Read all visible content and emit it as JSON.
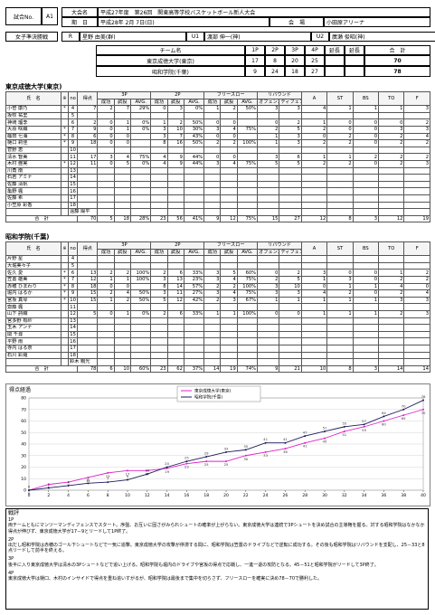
{
  "header": {
    "match_no_label": "試合No.",
    "match_no": "A1",
    "tournament_label": "大会名",
    "tournament": "平成27年度　第26回　関東高等学校バスケットボール新人大会",
    "date_label": "期　日",
    "date": "平成28年 2月 7日(日)",
    "venue_label": "会　場",
    "venue": "小田原アリーナ",
    "round": "女子準決勝戦",
    "officials": [
      {
        "role": "R",
        "name": "星野 由美(群)"
      },
      {
        "role": "U1",
        "name": "渡部 伸一(神)"
      },
      {
        "role": "U2",
        "name": "廣瀬 俊昭(神)"
      }
    ]
  },
  "scoreboard": {
    "headers": [
      "チーム名",
      "1P",
      "2P",
      "3P",
      "4P",
      "延長",
      "延長",
      "合　計"
    ],
    "rows": [
      {
        "team": "東京成徳大学(東京)",
        "periods": [
          17,
          8,
          20,
          25
        ],
        "total": 70
      },
      {
        "team": "昭和学院(千葉)",
        "periods": [
          9,
          24,
          18,
          27
        ],
        "total": 78
      }
    ]
  },
  "box_headers": {
    "top": [
      "氏　名",
      "※",
      "no",
      "得点",
      "3P",
      "2P",
      "フリースロー",
      "リバウンド",
      "A",
      "ST",
      "BS",
      "TO",
      "F"
    ],
    "sub": [
      "成功",
      "試投",
      "AVG.",
      "成功",
      "試投",
      "AVG.",
      "成功",
      "試投",
      "AVG.",
      "オフェンス",
      "ディフェンス"
    ]
  },
  "teams": [
    {
      "name": "東京成徳大学(東京)",
      "players": [
        {
          "name": "小笹 康乃",
          "starter": "*",
          "no": 4,
          "stats": [
            7,
            2,
            7,
            "29%",
            0,
            3,
            "0%",
            1,
            2,
            "50%",
            3,
            3,
            4,
            1,
            1,
            1,
            3
          ]
        },
        {
          "name": "坂牧 祐里",
          "no": 5,
          "stats": []
        },
        {
          "name": "神崎 瑠李",
          "no": 6,
          "stats": [
            2,
            0,
            1,
            "0%",
            1,
            2,
            "50%",
            0,
            0,
            null,
            0,
            2,
            1,
            0,
            0,
            0,
            2
          ]
        },
        {
          "name": "大原 咲織",
          "starter": "*",
          "no": 7,
          "stats": [
            9,
            0,
            1,
            "0%",
            3,
            10,
            "30%",
            3,
            4,
            "75%",
            2,
            5,
            2,
            0,
            0,
            3,
            3
          ]
        },
        {
          "name": "篠田 七海",
          "starter": "*",
          "no": 8,
          "stats": [
            6,
            0,
            0,
            null,
            3,
            7,
            "43%",
            0,
            0,
            null,
            1,
            3,
            0,
            2,
            0,
            2,
            4
          ]
        },
        {
          "name": "樋口 莉佳",
          "starter": "*",
          "no": 9,
          "stats": [
            18,
            0,
            0,
            null,
            8,
            16,
            "50%",
            2,
            2,
            "100%",
            1,
            3,
            2,
            2,
            0,
            2,
            2
          ]
        },
        {
          "name": "菅野 恵",
          "no": 10,
          "stats": []
        },
        {
          "name": "清水 智美",
          "no": 11,
          "stats": [
            17,
            3,
            4,
            "75%",
            4,
            9,
            "44%",
            0,
            0,
            null,
            3,
            6,
            1,
            1,
            2,
            2,
            2
          ]
        },
        {
          "name": "木村 亜実",
          "starter": "*",
          "no": 12,
          "stats": [
            11,
            0,
            5,
            "0%",
            4,
            9,
            "44%",
            3,
            4,
            "75%",
            5,
            5,
            2,
            2,
            0,
            2,
            3
          ]
        },
        {
          "name": "川角 南",
          "no": 13,
          "stats": []
        },
        {
          "name": "石若 アミナ",
          "no": 14,
          "stats": []
        },
        {
          "name": "佐藤 清帆",
          "no": 15,
          "stats": []
        },
        {
          "name": "亀野 楓",
          "no": 16,
          "stats": []
        },
        {
          "name": "佐藤 希",
          "no": 17,
          "stats": []
        },
        {
          "name": "小笠原 彩香",
          "no": 18,
          "stats": []
        }
      ],
      "coach": "遠藤 陽平",
      "total_label": "合　計",
      "totals": [
        70,
        5,
        18,
        "28%",
        23,
        56,
        "41%",
        9,
        12,
        "75%",
        15,
        27,
        12,
        8,
        3,
        12,
        19
      ]
    },
    {
      "name": "昭和学院(千葉)",
      "players": [
        {
          "name": "片野 星",
          "no": 4,
          "stats": []
        },
        {
          "name": "大堀美々子",
          "no": 5,
          "stats": []
        },
        {
          "name": "佐久 愛",
          "starter": "*",
          "no": 6,
          "stats": [
            13,
            2,
            2,
            "100%",
            2,
            6,
            "33%",
            3,
            5,
            "60%",
            0,
            2,
            3,
            0,
            0,
            1,
            2
          ]
        },
        {
          "name": "笠置 雄美",
          "starter": "*",
          "no": 7,
          "stats": [
            12,
            1,
            1,
            "100%",
            3,
            13,
            "23%",
            3,
            4,
            "75%",
            2,
            5,
            1,
            3,
            0,
            2,
            2
          ]
        },
        {
          "name": "赤穂 ひまわり",
          "starter": "*",
          "no": 8,
          "stats": [
            18,
            0,
            0,
            null,
            8,
            14,
            "57%",
            2,
            2,
            "100%",
            3,
            10,
            0,
            1,
            1,
            4,
            0
          ]
        },
        {
          "name": "堀内 はるか",
          "starter": "*",
          "no": 9,
          "stats": [
            15,
            2,
            4,
            "50%",
            3,
            11,
            "27%",
            3,
            4,
            "75%",
            3,
            3,
            4,
            2,
            0,
            2,
            4
          ]
        },
        {
          "name": "宮坂 真琴",
          "starter": "*",
          "no": 10,
          "stats": [
            15,
            1,
            2,
            "50%",
            5,
            12,
            "42%",
            2,
            3,
            "67%",
            1,
            1,
            1,
            1,
            1,
            3,
            3
          ]
        },
        {
          "name": "齋藤 楓",
          "no": 11,
          "stats": []
        },
        {
          "name": "山下 詩織",
          "no": 12,
          "stats": [
            5,
            0,
            1,
            "0%",
            2,
            6,
            "33%",
            1,
            1,
            "100%",
            0,
            0,
            1,
            1,
            1,
            2,
            3
          ]
        },
        {
          "name": "宮多野 有紗",
          "no": 13,
          "stats": []
        },
        {
          "name": "玉木 アンナ",
          "no": 14,
          "stats": []
        },
        {
          "name": "関 千尋",
          "no": 15,
          "stats": []
        },
        {
          "name": "平野 雨",
          "no": 16,
          "stats": []
        },
        {
          "name": "寺内 はる奈",
          "no": 17,
          "stats": []
        },
        {
          "name": "石川 彩羅",
          "no": 18,
          "stats": []
        }
      ],
      "coach": "鈴木 親光",
      "total_label": "合　計",
      "totals": [
        78,
        6,
        10,
        "60%",
        23,
        62,
        "37%",
        14,
        19,
        "74%",
        9,
        21,
        10,
        8,
        3,
        14,
        14
      ]
    }
  ],
  "chart_data": {
    "type": "line",
    "title": "得点経過",
    "legend": "top",
    "x": [
      0,
      2,
      4,
      6,
      8,
      10,
      12,
      14,
      16,
      18,
      20,
      22,
      24,
      26,
      28,
      30,
      32,
      34,
      36,
      38,
      40
    ],
    "xlim": [
      0,
      40
    ],
    "xticks": [
      0,
      2,
      4,
      6,
      8,
      10,
      12,
      14,
      16,
      18,
      20,
      22,
      24,
      26,
      28,
      30,
      32,
      34,
      36,
      38,
      40
    ],
    "ylim": [
      0,
      80
    ],
    "yticks": [
      0,
      10,
      20,
      30,
      40,
      50,
      60,
      70,
      80
    ],
    "grid": true,
    "series": [
      {
        "name": "東京成徳大学(東京)",
        "color": "#e020c8",
        "values": [
          0,
          5,
          7,
          11,
          15,
          17,
          17,
          19,
          23,
          25,
          25,
          30,
          33,
          36,
          41,
          45,
          51,
          55,
          60,
          65,
          70
        ]
      },
      {
        "name": "昭和学院(千葉)",
        "color": "#1a1a5a",
        "values": [
          0,
          2,
          4,
          6,
          7,
          9,
          14,
          20,
          25,
          29,
          33,
          35,
          41,
          41,
          47,
          51,
          55,
          57,
          64,
          70,
          78
        ]
      }
    ]
  },
  "comments": {
    "label": "戦評",
    "sections": [
      {
        "period": "1P",
        "text": "両チームともにマンツーマンディフェンスでスタート。序盤、お互いに固さがみられシュートの確率が上がらない。東京成徳大学は連続で3Pシュートを決め試合の主導権を握る。対する昭和学院はなかなか得点が伸びず、東京成徳大学が17－9とリードして1P終了。"
      },
      {
        "period": "2P",
        "text": "出だし昭和学院は赤穂のゴール下シュートなどで一気に追撃。東京成徳大学の攻撃が停滞する間に、昭和学院は笠置のドライブなどで逆転に成功する。その後も昭和学院はリバウンドを支配し、25－33と8点リードして前半を終える。"
      },
      {
        "period": "3P",
        "text": "後半に入り東京成徳大学は清水の3Pシュートなどで追い上げる。昭和学院も堀内のドライブや宮坂の得点で応戦し、一進一退の攻防となる。45－51と昭和学院がリードして3P終了。"
      },
      {
        "period": "4P",
        "text": "東京成徳大学は樋口、木村のインサイドで得点を重ね追いすがるが、昭和学院は最後まで集中を切らさず、フリースローを確実に決め78－70で勝利した。"
      }
    ]
  }
}
